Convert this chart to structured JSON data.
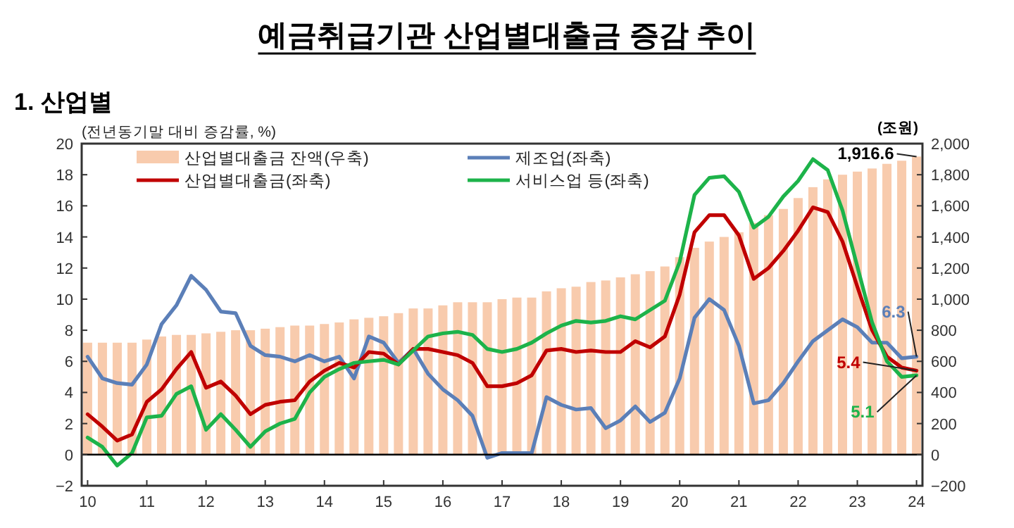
{
  "chart_data": {
    "type": "bar",
    "title": "예금취급기관 산업별대출금 증감 추이",
    "subtitle": "1. 산업별",
    "ylabel": "(전년동기말 대비 증감률, %)",
    "y2label": "(조원)",
    "x": [
      2010,
      2010.25,
      2010.5,
      2010.75,
      2011,
      2011.25,
      2011.5,
      2011.75,
      2012,
      2012.25,
      2012.5,
      2012.75,
      2013,
      2013.25,
      2013.5,
      2013.75,
      2014,
      2014.25,
      2014.5,
      2014.75,
      2015,
      2015.25,
      2015.5,
      2015.75,
      2016,
      2016.25,
      2016.5,
      2016.75,
      2017,
      2017.25,
      2017.5,
      2017.75,
      2018,
      2018.25,
      2018.5,
      2018.75,
      2019,
      2019.25,
      2019.5,
      2019.75,
      2020,
      2020.25,
      2020.5,
      2020.75,
      2021,
      2021.25,
      2021.5,
      2021.75,
      2022,
      2022.25,
      2022.5,
      2022.75,
      2023,
      2023.25,
      2023.5,
      2023.75,
      2024
    ],
    "xlim": [
      2009.9,
      2024.1
    ],
    "xticks": [
      {
        "value": 2010,
        "label": "10"
      },
      {
        "value": 2011,
        "label": "11"
      },
      {
        "value": 2012,
        "label": "12"
      },
      {
        "value": 2013,
        "label": "13"
      },
      {
        "value": 2014,
        "label": "14"
      },
      {
        "value": 2015,
        "label": "15"
      },
      {
        "value": 2016,
        "label": "16"
      },
      {
        "value": 2017,
        "label": "17"
      },
      {
        "value": 2018,
        "label": "18"
      },
      {
        "value": 2019,
        "label": "19"
      },
      {
        "value": 2020,
        "label": "20"
      },
      {
        "value": 2021,
        "label": "21"
      },
      {
        "value": 2022,
        "label": "22"
      },
      {
        "value": 2023,
        "label": "23"
      },
      {
        "value": 2024,
        "label": "24"
      }
    ],
    "ylim": [
      -2,
      20
    ],
    "yticks": [
      -2,
      0,
      2,
      4,
      6,
      8,
      10,
      12,
      14,
      16,
      18,
      20
    ],
    "y2lim": [
      -200,
      2000
    ],
    "y2ticks": [
      -200,
      0,
      200,
      400,
      600,
      800,
      {
        "value": 1000,
        "label": "1,000"
      },
      {
        "value": 1200,
        "label": "1,200"
      },
      {
        "value": 1400,
        "label": "1,400"
      },
      {
        "value": 1600,
        "label": "1,600"
      },
      {
        "value": 1800,
        "label": "1,800"
      },
      {
        "value": 2000,
        "label": "2,000"
      }
    ],
    "grid": false,
    "legend": "top left",
    "ref_lines": [
      {
        "axis": "y",
        "value": 0,
        "color": "#000000"
      }
    ],
    "series": [
      {
        "name": "산업별대출금 잔액(우축)",
        "axis": "y2",
        "color": "#f8cbad",
        "values": [
          720,
          720,
          720,
          720,
          740,
          760,
          770,
          770,
          780,
          790,
          800,
          800,
          810,
          820,
          830,
          830,
          840,
          850,
          870,
          880,
          890,
          910,
          940,
          940,
          960,
          980,
          980,
          980,
          1000,
          1010,
          1010,
          1050,
          1070,
          1080,
          1110,
          1120,
          1140,
          1160,
          1180,
          1210,
          1270,
          1330,
          1370,
          1400,
          1430,
          1490,
          1540,
          1580,
          1650,
          1720,
          1770,
          1800,
          1820,
          1840,
          1870,
          1890,
          1916.6
        ],
        "value_labels": [
          null,
          null,
          null,
          null,
          null,
          null,
          null,
          null,
          null,
          null,
          null,
          null,
          null,
          null,
          null,
          null,
          null,
          null,
          null,
          null,
          null,
          null,
          null,
          null,
          null,
          null,
          null,
          null,
          null,
          null,
          null,
          null,
          null,
          null,
          null,
          null,
          null,
          null,
          null,
          null,
          null,
          null,
          null,
          null,
          null,
          null,
          null,
          null,
          null,
          null,
          null,
          null,
          null,
          null,
          null,
          null,
          "1,916.6"
        ]
      },
      {
        "name": "제조업(좌축)",
        "type": "line",
        "color": "#5b7fb8",
        "values": [
          6.3,
          4.9,
          4.6,
          4.5,
          5.8,
          8.4,
          9.6,
          11.5,
          10.6,
          9.2,
          9.1,
          7.0,
          6.4,
          6.3,
          6.0,
          6.4,
          6.0,
          6.3,
          4.9,
          7.6,
          7.2,
          5.9,
          6.8,
          5.2,
          4.2,
          3.5,
          2.5,
          -0.2,
          0.1,
          0.1,
          0.1,
          3.7,
          3.2,
          2.9,
          3.0,
          1.7,
          2.2,
          3.1,
          2.1,
          2.7,
          4.9,
          8.8,
          10.0,
          9.3,
          7.0,
          3.3,
          3.5,
          4.6,
          6.0,
          7.3,
          8.0,
          8.7,
          8.2,
          7.2,
          7.2,
          6.2,
          6.3
        ],
        "value_labels": [
          null,
          null,
          null,
          null,
          null,
          null,
          null,
          null,
          null,
          null,
          null,
          null,
          null,
          null,
          null,
          null,
          null,
          null,
          null,
          null,
          null,
          null,
          null,
          null,
          null,
          null,
          null,
          null,
          null,
          null,
          null,
          null,
          null,
          null,
          null,
          null,
          null,
          null,
          null,
          null,
          null,
          null,
          null,
          null,
          null,
          null,
          null,
          null,
          null,
          null,
          null,
          null,
          null,
          null,
          null,
          null,
          "6.3"
        ]
      },
      {
        "name": "산업별대출금(좌축)",
        "type": "line",
        "color": "#c00000",
        "values": [
          2.6,
          1.8,
          0.9,
          1.3,
          3.4,
          4.2,
          5.5,
          6.6,
          4.3,
          4.7,
          3.8,
          2.6,
          3.2,
          3.4,
          3.5,
          4.7,
          5.4,
          5.9,
          5.6,
          6.6,
          6.5,
          5.8,
          6.8,
          6.8,
          6.6,
          6.4,
          5.9,
          4.4,
          4.4,
          4.6,
          5.1,
          6.7,
          6.8,
          6.6,
          6.7,
          6.6,
          6.6,
          7.3,
          6.9,
          7.6,
          10.3,
          14.3,
          15.4,
          15.4,
          14.1,
          11.3,
          12.0,
          13.1,
          14.4,
          15.9,
          15.6,
          13.7,
          10.8,
          8.0,
          6.3,
          5.6,
          5.4
        ],
        "value_labels": [
          null,
          null,
          null,
          null,
          null,
          null,
          null,
          null,
          null,
          null,
          null,
          null,
          null,
          null,
          null,
          null,
          null,
          null,
          null,
          null,
          null,
          null,
          null,
          null,
          null,
          null,
          null,
          null,
          null,
          null,
          null,
          null,
          null,
          null,
          null,
          null,
          null,
          null,
          null,
          null,
          null,
          null,
          null,
          null,
          null,
          null,
          null,
          null,
          null,
          null,
          null,
          null,
          null,
          null,
          null,
          null,
          "5.4"
        ]
      },
      {
        "name": "서비스업 등(좌축)",
        "type": "line",
        "color": "#1db34a",
        "values": [
          1.1,
          0.5,
          -0.7,
          0.1,
          2.4,
          2.5,
          3.9,
          4.4,
          1.6,
          2.6,
          1.6,
          0.5,
          1.5,
          2.0,
          2.3,
          4.0,
          5.0,
          5.5,
          5.9,
          6.0,
          6.1,
          5.8,
          6.7,
          7.6,
          7.8,
          7.9,
          7.7,
          6.8,
          6.6,
          6.8,
          7.2,
          7.8,
          8.3,
          8.6,
          8.5,
          8.6,
          8.9,
          8.7,
          9.3,
          9.9,
          12.4,
          16.7,
          17.8,
          17.9,
          16.9,
          14.6,
          15.3,
          16.6,
          17.6,
          19.0,
          18.3,
          15.7,
          12.1,
          8.5,
          6.0,
          5.0,
          5.1
        ],
        "value_labels": [
          null,
          null,
          null,
          null,
          null,
          null,
          null,
          null,
          null,
          null,
          null,
          null,
          null,
          null,
          null,
          null,
          null,
          null,
          null,
          null,
          null,
          null,
          null,
          null,
          null,
          null,
          null,
          null,
          null,
          null,
          null,
          null,
          null,
          null,
          null,
          null,
          null,
          null,
          null,
          null,
          null,
          null,
          null,
          null,
          null,
          null,
          null,
          null,
          null,
          null,
          null,
          null,
          null,
          null,
          null,
          null,
          "5.1"
        ]
      }
    ]
  }
}
